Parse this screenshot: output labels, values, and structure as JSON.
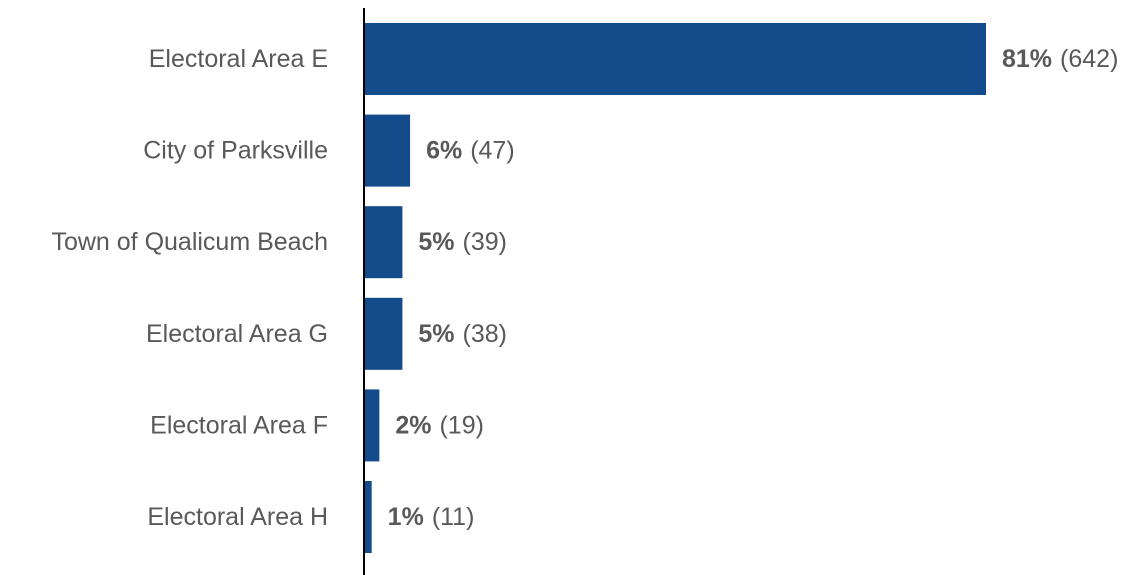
{
  "chart_data": {
    "type": "bar",
    "orientation": "horizontal",
    "categories": [
      "Electoral Area E",
      "City of Parksville",
      "Town of Qualicum Beach",
      "Electoral Area G",
      "Electoral Area F",
      "Electoral Area H"
    ],
    "values": [
      81,
      6,
      5,
      5,
      2,
      1
    ],
    "counts": [
      642,
      47,
      39,
      38,
      19,
      11
    ],
    "percent_labels": [
      "81%",
      "6%",
      "5%",
      "5%",
      "2%",
      "1%"
    ],
    "count_labels": [
      "(642)",
      "(47)",
      "(39)",
      "(38)",
      "(19)",
      "(11)"
    ],
    "value_unit": "%",
    "grid": false,
    "legend": "none",
    "bar_color": "#144b8a",
    "axis_color": "#000000",
    "text_color": "#595959"
  }
}
